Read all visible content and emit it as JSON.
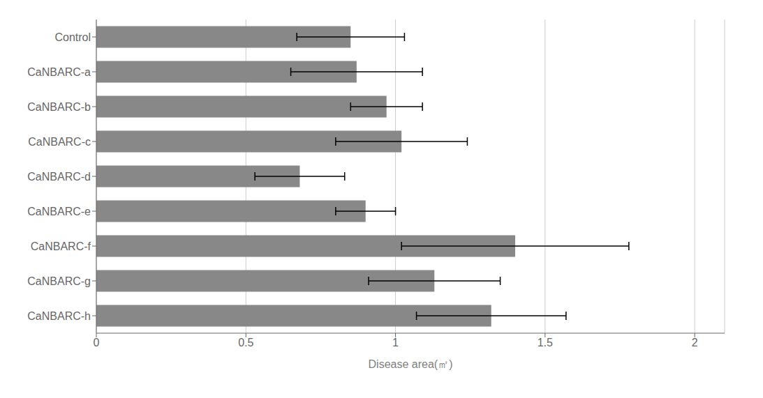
{
  "chart_data": {
    "type": "bar",
    "orientation": "horizontal",
    "categories": [
      "Control",
      "CaNBARC-a",
      "CaNBARC-b",
      "CaNBARC-c",
      "CaNBARC-d",
      "CaNBARC-e",
      "CaNBARC-f",
      "CaNBARC-g",
      "CaNBARC-h"
    ],
    "values": [
      0.85,
      0.87,
      0.97,
      1.02,
      0.68,
      0.9,
      1.4,
      1.13,
      1.32
    ],
    "errors": [
      0.18,
      0.22,
      0.12,
      0.22,
      0.15,
      0.1,
      0.38,
      0.22,
      0.25
    ],
    "color": "#888888",
    "xlabel": "Disease area(㎡)",
    "xlim": [
      0,
      2.1
    ],
    "xticks": [
      0,
      0.5,
      1,
      1.5,
      2
    ],
    "grid": true
  }
}
